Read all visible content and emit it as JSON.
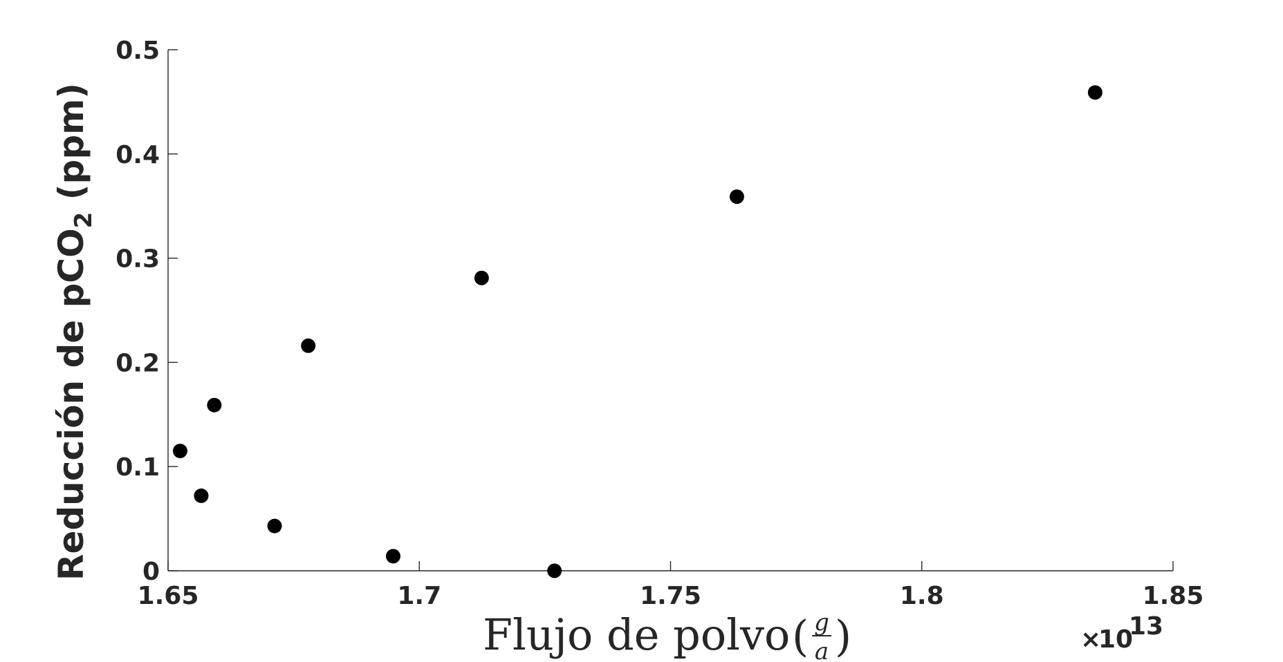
{
  "chart_data": {
    "type": "scatter",
    "title": "",
    "xlabel": "Flujo de polvo",
    "xlabel_fraction": {
      "numerator": "g",
      "denominator": "a"
    },
    "ylabel": {
      "main": "Reducción de pCO",
      "subscript": "2",
      "suffix": " (ppm)"
    },
    "x_multiplier": {
      "times": "×",
      "base": "10",
      "exponent": "13"
    },
    "xlim": [
      1.65,
      1.85
    ],
    "ylim": [
      0,
      0.5
    ],
    "x_ticks": [
      1.65,
      1.7,
      1.75,
      1.8,
      1.85
    ],
    "x_tick_labels": [
      "1.65",
      "1.7",
      "1.75",
      "1.8",
      "1.85"
    ],
    "y_ticks": [
      0,
      0.1,
      0.2,
      0.3,
      0.4,
      0.5
    ],
    "y_tick_labels": [
      "0",
      "0.1",
      "0.2",
      "0.3",
      "0.4",
      "0.5"
    ],
    "grid": false,
    "marker_color": "#000000",
    "axis_color": "#262626",
    "points": [
      {
        "x": 1.6524,
        "y": 0.115
      },
      {
        "x": 1.6566,
        "y": 0.072
      },
      {
        "x": 1.6592,
        "y": 0.159
      },
      {
        "x": 1.6712,
        "y": 0.043
      },
      {
        "x": 1.6779,
        "y": 0.216
      },
      {
        "x": 1.6948,
        "y": 0.014
      },
      {
        "x": 1.7124,
        "y": 0.281
      },
      {
        "x": 1.7269,
        "y": 0.0
      },
      {
        "x": 1.7632,
        "y": 0.359
      },
      {
        "x": 1.8345,
        "y": 0.459
      }
    ]
  }
}
